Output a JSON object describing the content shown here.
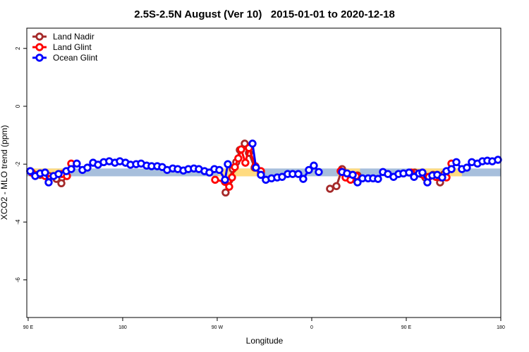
{
  "chart_data": {
    "type": "line",
    "title": "2.5S-2.5N August (Ver 10)   2015-01-01 to 2020-12-18",
    "x_label": "Longitude",
    "y_label": "XCO2 - MLO trend (ppm)",
    "xlim": [
      88.7,
      540
    ],
    "ylim": [
      -7.3,
      2.7
    ],
    "xticks": [
      {
        "value": 90,
        "label": "90 E"
      },
      180,
      {
        "value": 270,
        "label": "90 W"
      },
      {
        "value": 360,
        "label": "0"
      },
      {
        "value": 450,
        "label": "90 E"
      },
      {
        "value": 540,
        "label": "180"
      }
    ],
    "yticks": [
      2,
      0,
      -2,
      -4,
      -6
    ],
    "legend": "top-left",
    "bands": [
      {
        "x": [
          88.7,
          540
        ],
        "y": [
          -2.42,
          -2.15
        ],
        "color": "#a7bfdc"
      },
      {
        "x": [
          93,
          127
        ],
        "y": [
          -2.42,
          -2.15
        ],
        "color": "#ffdb80"
      },
      {
        "x": [
          271,
          308
        ],
        "y": [
          -2.42,
          -2.15
        ],
        "color": "#ffdb80"
      },
      {
        "x": [
          385,
          406
        ],
        "y": [
          -2.42,
          -2.15
        ],
        "color": "#ffdb80"
      },
      {
        "x": [
          456,
          503
        ],
        "y": [
          -2.42,
          -2.15
        ],
        "color": "#ffdb80"
      }
    ],
    "series": [
      {
        "name": "Land Nadir",
        "color": "#a52a2a",
        "x": [
          92,
          96.7,
          101.4,
          106.1,
          110.1,
          116.9,
          121.6,
          126.9,
          null,
          278,
          281.4,
          284.8,
          288.1,
          291.5,
          296.2,
          300.2,
          305.6,
          311.6,
          null,
          377.4,
          383.5,
          388.9,
          393.6,
          399,
          403.6,
          null,
          458,
          464.1,
          468.1,
          475.5,
          482.2,
          486.2,
          493
        ],
        "values": [
          -2.24,
          -2.37,
          -2.37,
          -2.32,
          -2.41,
          -2.51,
          -2.66,
          -2.41,
          null,
          -2.98,
          -2.56,
          -2.17,
          -1.93,
          -1.51,
          -1.29,
          -1.61,
          -2.12,
          -2.29,
          null,
          -2.85,
          -2.76,
          -2.17,
          -2.46,
          -2.51,
          -2.39,
          null,
          -2.29,
          -2.34,
          -2.46,
          -2.37,
          -2.63,
          -2.34,
          -2.17
        ]
      },
      {
        "name": "Land Glint",
        "color": "#ff0000",
        "x": [
          93.4,
          106.1,
          114.2,
          122.2,
          126.9,
          131,
          null,
          268,
          277.4,
          281.4,
          284.1,
          286.8,
          290.1,
          292.8,
          296.8,
          300.2,
          306.3,
          311.6,
          null,
          387.5,
          392.2,
          396.9,
          402.3,
          null,
          454.7,
          466.1,
          471.5,
          478.2,
          482.9,
          488.3,
          493
        ],
        "values": [
          -2.29,
          -2.41,
          -2.41,
          -2.34,
          -2.41,
          -1.98,
          null,
          -2.54,
          -2.61,
          -2.78,
          -2.46,
          -2.1,
          -1.8,
          -1.49,
          -1.95,
          -1.44,
          -2.07,
          -2.24,
          null,
          -2.24,
          -2.46,
          -2.54,
          -2.41,
          null,
          -2.29,
          -2.37,
          -2.44,
          -2.44,
          -2.46,
          -2.46,
          -1.98
        ]
      },
      {
        "name": "Ocean Glint",
        "color": "#0000ff",
        "x": [
          92,
          96.7,
          101.4,
          106.1,
          109.5,
          114.2,
          118.9,
          126.3,
          131,
          136.3,
          141.7,
          146.4,
          151.8,
          156.5,
          161.9,
          167.2,
          172.6,
          177.3,
          182.7,
          187.4,
          192.8,
          197.5,
          202.8,
          207.5,
          212.9,
          217.6,
          222.3,
          227.7,
          232.4,
          237.8,
          242.5,
          247.8,
          252.5,
          257.9,
          262.6,
          267.3,
          272,
          277.4,
          280.1,
          null,
          303.6,
          306.9,
          311.6,
          316.3,
          321.7,
          327.1,
          331.8,
          337.1,
          341.8,
          347.2,
          351.9,
          357.3,
          362,
          366.7,
          null,
          388.9,
          393.6,
          399,
          403.6,
          408.3,
          413.7,
          418.4,
          423.1,
          427.8,
          432.5,
          437.9,
          442.6,
          447.3,
          452.7,
          457.4,
          462.1,
          465.4,
          470.1,
          474.8,
          479.5,
          484.2,
          488.3,
          493,
          497.7,
          503,
          507.7,
          512.4,
          517.8,
          522.5,
          527.2,
          531.9,
          537.3
        ],
        "values": [
          -2.24,
          -2.41,
          -2.32,
          -2.29,
          -2.63,
          -2.41,
          -2.34,
          -2.24,
          -2.17,
          -1.98,
          -2.2,
          -2.12,
          -1.95,
          -2.02,
          -1.93,
          -1.9,
          -1.95,
          -1.9,
          -1.95,
          -2.02,
          -2,
          -1.98,
          -2.05,
          -2.07,
          -2.07,
          -2.1,
          -2.2,
          -2.15,
          -2.17,
          -2.22,
          -2.17,
          -2.15,
          -2.17,
          -2.24,
          -2.29,
          -2.17,
          -2.2,
          -2.54,
          -2,
          null,
          -1.29,
          -2.12,
          -2.37,
          -2.54,
          -2.49,
          -2.46,
          -2.44,
          -2.34,
          -2.34,
          -2.34,
          -2.51,
          -2.2,
          -2.05,
          -2.27,
          null,
          -2.27,
          -2.32,
          -2.37,
          -2.63,
          -2.49,
          -2.49,
          -2.49,
          -2.51,
          -2.27,
          -2.34,
          -2.44,
          -2.34,
          -2.32,
          -2.29,
          -2.44,
          -2.32,
          -2.29,
          -2.63,
          -2.39,
          -2.37,
          -2.46,
          -2.24,
          -2.17,
          -1.93,
          -2.17,
          -2.12,
          -1.93,
          -1.98,
          -1.9,
          -1.88,
          -1.9,
          -1.85
        ]
      }
    ]
  }
}
